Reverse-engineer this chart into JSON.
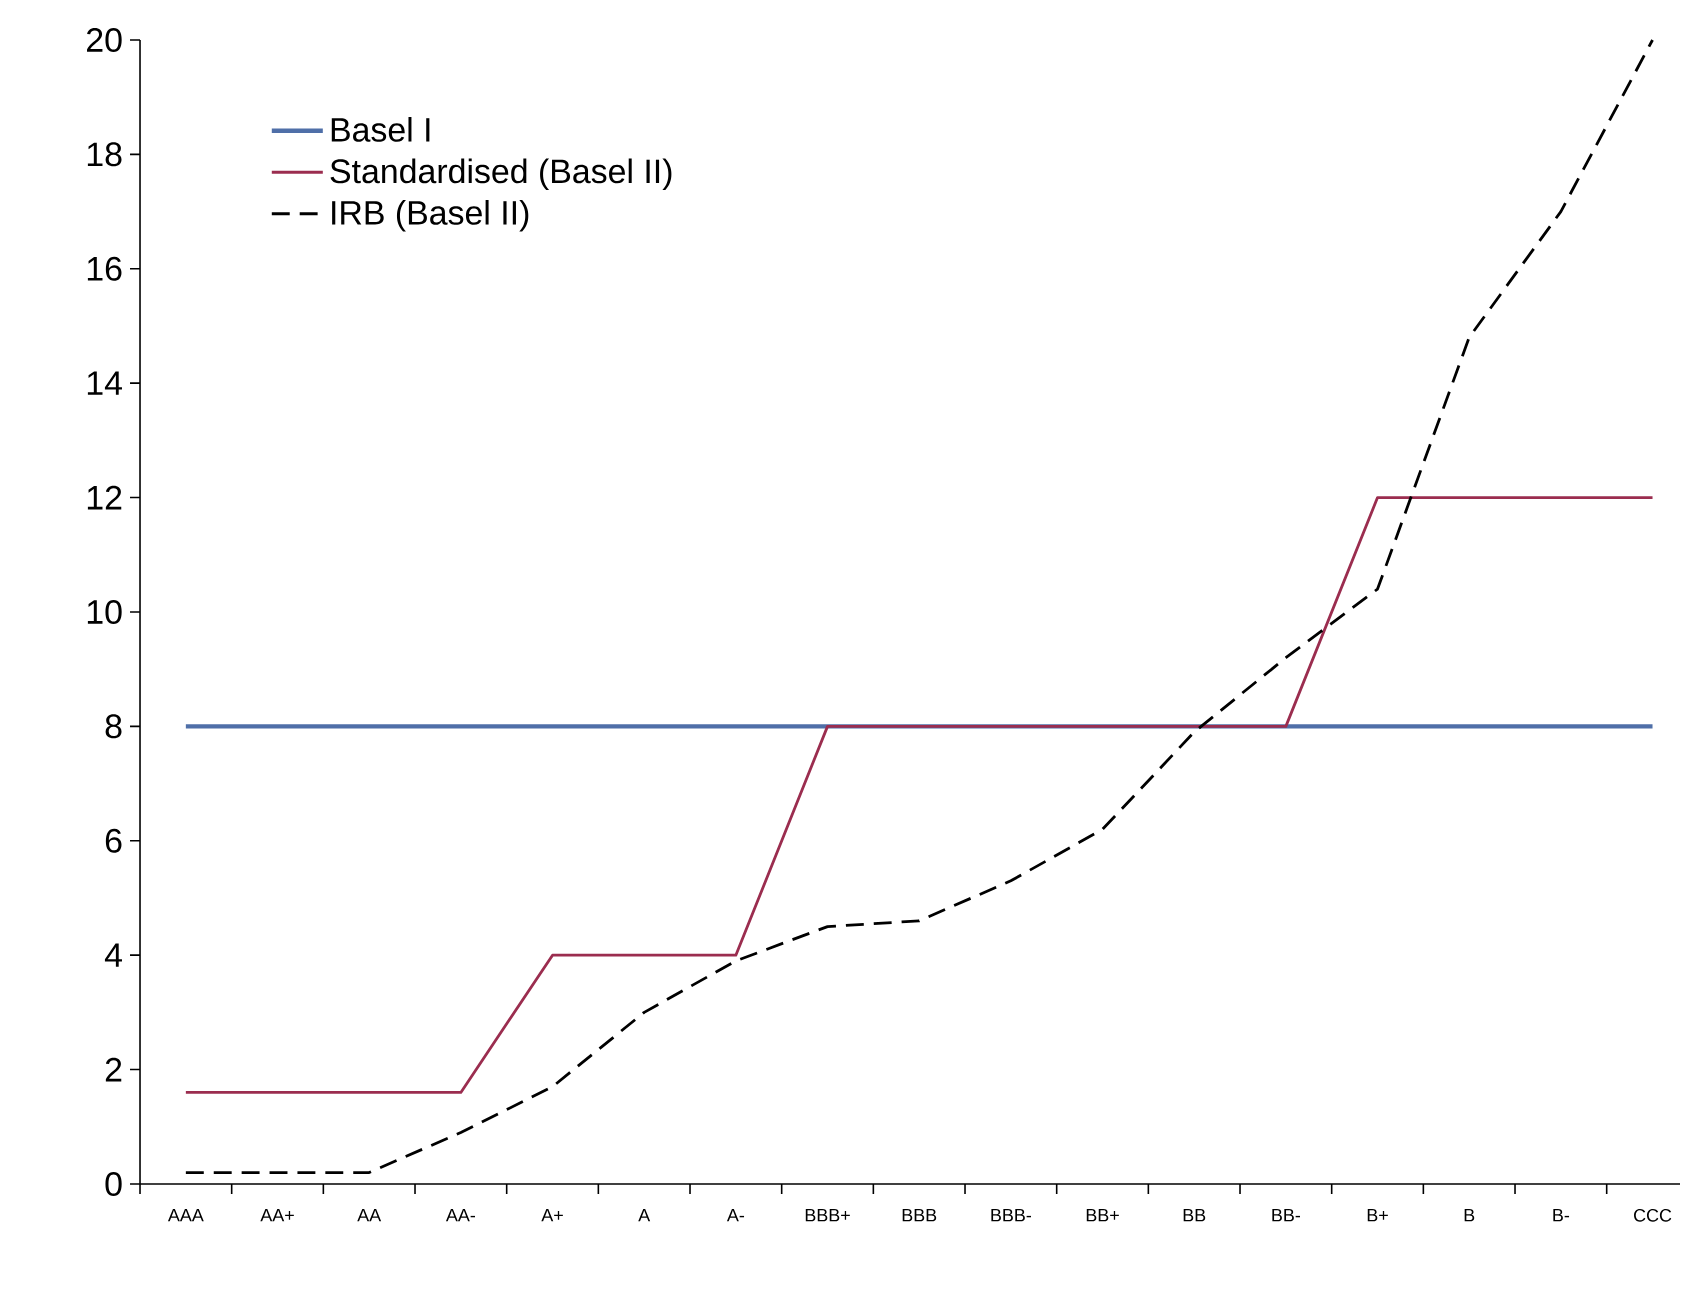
{
  "chart_data": {
    "type": "line",
    "categories": [
      "AAA",
      "AA+",
      "AA",
      "AA-",
      "A+",
      "A",
      "A-",
      "BBB+",
      "BBB",
      "BBB-",
      "BB+",
      "BB",
      "BB-",
      "B+",
      "B",
      "B-",
      "CCC"
    ],
    "series": [
      {
        "name": "Basel I",
        "color": "#4f6fa8",
        "values": [
          8,
          8,
          8,
          8,
          8,
          8,
          8,
          8,
          8,
          8,
          8,
          8,
          8,
          8,
          8,
          8,
          8
        ]
      },
      {
        "name": "Standardised (Basel II)",
        "color": "#9b2d4f",
        "values": [
          1.6,
          1.6,
          1.6,
          1.6,
          4,
          4,
          4,
          8,
          8,
          8,
          8,
          8,
          8,
          12,
          12,
          12,
          12
        ]
      },
      {
        "name": "IRB (Basel II)",
        "color": "#000000",
        "line_style": "dashed",
        "values": [
          0.2,
          0.2,
          0.2,
          0.9,
          1.7,
          3.0,
          3.9,
          4.5,
          4.6,
          5.3,
          6.2,
          7.9,
          9.2,
          10.4,
          14.8,
          17.0,
          20
        ]
      }
    ],
    "ylim": [
      0,
      20
    ],
    "yticks": [
      0,
      2,
      4,
      6,
      8,
      10,
      12,
      14,
      16,
      18,
      20
    ],
    "grid": false,
    "legend": "top left",
    "marker": "none",
    "line_style": "solid"
  }
}
